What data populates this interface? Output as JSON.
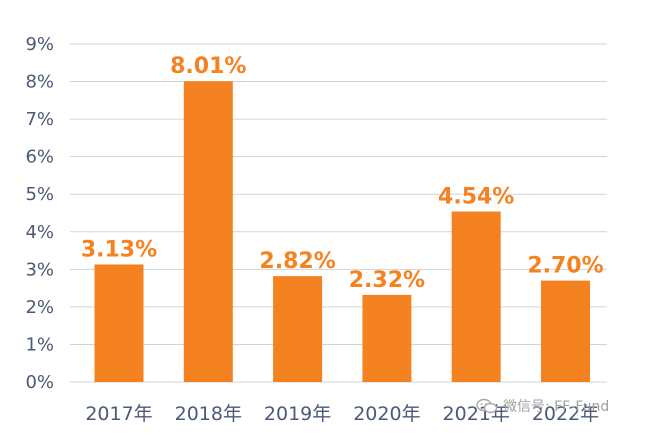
{
  "chart_data": {
    "type": "bar",
    "categories": [
      "2017年",
      "2018年",
      "2019年",
      "2020年",
      "2021年",
      "2022年"
    ],
    "values": [
      3.13,
      8.01,
      2.82,
      2.32,
      4.54,
      2.7
    ],
    "data_labels": [
      "3.13%",
      "8.01%",
      "2.82%",
      "2.32%",
      "4.54%",
      "2.70%"
    ],
    "y_ticks": [
      "0%",
      "1%",
      "2%",
      "3%",
      "4%",
      "5%",
      "6%",
      "7%",
      "8%",
      "9%"
    ],
    "ylim": [
      0,
      9
    ],
    "grid": true,
    "bar_color": "#f58220",
    "label_color": "#f58220",
    "axis_text_color": "#4b5a78"
  },
  "watermark": {
    "text": "微信号: FF-Fund",
    "icon": "wechat-icon"
  }
}
